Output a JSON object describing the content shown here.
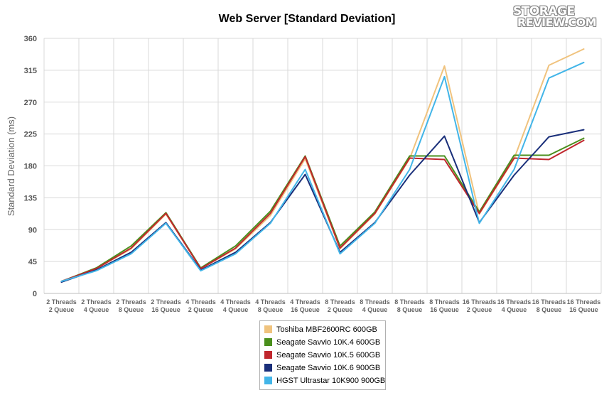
{
  "chart_data": {
    "type": "line",
    "title": "Web Server [Standard Deviation]",
    "xlabel": "",
    "ylabel": "Standard Deviation (ms)",
    "ylim": [
      0,
      360
    ],
    "yticks": [
      0,
      45,
      90,
      135,
      180,
      225,
      270,
      315,
      360
    ],
    "grid": true,
    "legend_position": "bottom",
    "categories": [
      [
        "2 Threads",
        "2 Queue"
      ],
      [
        "2 Threads",
        "4 Queue"
      ],
      [
        "2 Threads",
        "8 Queue"
      ],
      [
        "2 Threads",
        "16 Queue"
      ],
      [
        "4 Threads",
        "2 Queue"
      ],
      [
        "4 Threads",
        "4 Queue"
      ],
      [
        "4 Threads",
        "8 Queue"
      ],
      [
        "4 Threads",
        "16 Queue"
      ],
      [
        "8 Threads",
        "2 Queue"
      ],
      [
        "8 Threads",
        "4 Queue"
      ],
      [
        "8 Threads",
        "8 Queue"
      ],
      [
        "8 Threads",
        "16 Queue"
      ],
      [
        "16 Threads",
        "2 Queue"
      ],
      [
        "16 Threads",
        "4 Queue"
      ],
      [
        "16 Threads",
        "8 Queue"
      ],
      [
        "16 Threads",
        "16 Queue"
      ]
    ],
    "series": [
      {
        "name": "Toshiba MBF2600RC 600GB",
        "color": "#f0c37e",
        "values": [
          17,
          35,
          63,
          112,
          35,
          63,
          110,
          190,
          63,
          112,
          190,
          321,
          112,
          190,
          322,
          345
        ]
      },
      {
        "name": "Seagate Savvio 10K.4 600GB",
        "color": "#4a8f1c",
        "values": [
          17,
          36,
          67,
          114,
          36,
          67,
          116,
          194,
          67,
          115,
          194,
          194,
          115,
          195,
          195,
          219
        ]
      },
      {
        "name": "Seagate Savvio 10K.5 600GB",
        "color": "#c0262d",
        "values": [
          17,
          35,
          64,
          113,
          35,
          64,
          113,
          193,
          64,
          113,
          191,
          189,
          113,
          191,
          189,
          216
        ]
      },
      {
        "name": "Seagate Savvio 10K.6 900GB",
        "color": "#1a2f7a",
        "values": [
          16,
          33,
          58,
          100,
          33,
          58,
          100,
          168,
          58,
          100,
          167,
          222,
          100,
          167,
          221,
          231
        ]
      },
      {
        "name": "HGST Ultrastar 10K900 900GB",
        "color": "#42b5e8",
        "values": [
          17,
          32,
          56,
          99,
          32,
          56,
          99,
          175,
          56,
          99,
          175,
          306,
          99,
          175,
          304,
          326
        ]
      }
    ]
  },
  "logo": {
    "line1": "STORAGE",
    "line2": "REVIEW.COM"
  }
}
